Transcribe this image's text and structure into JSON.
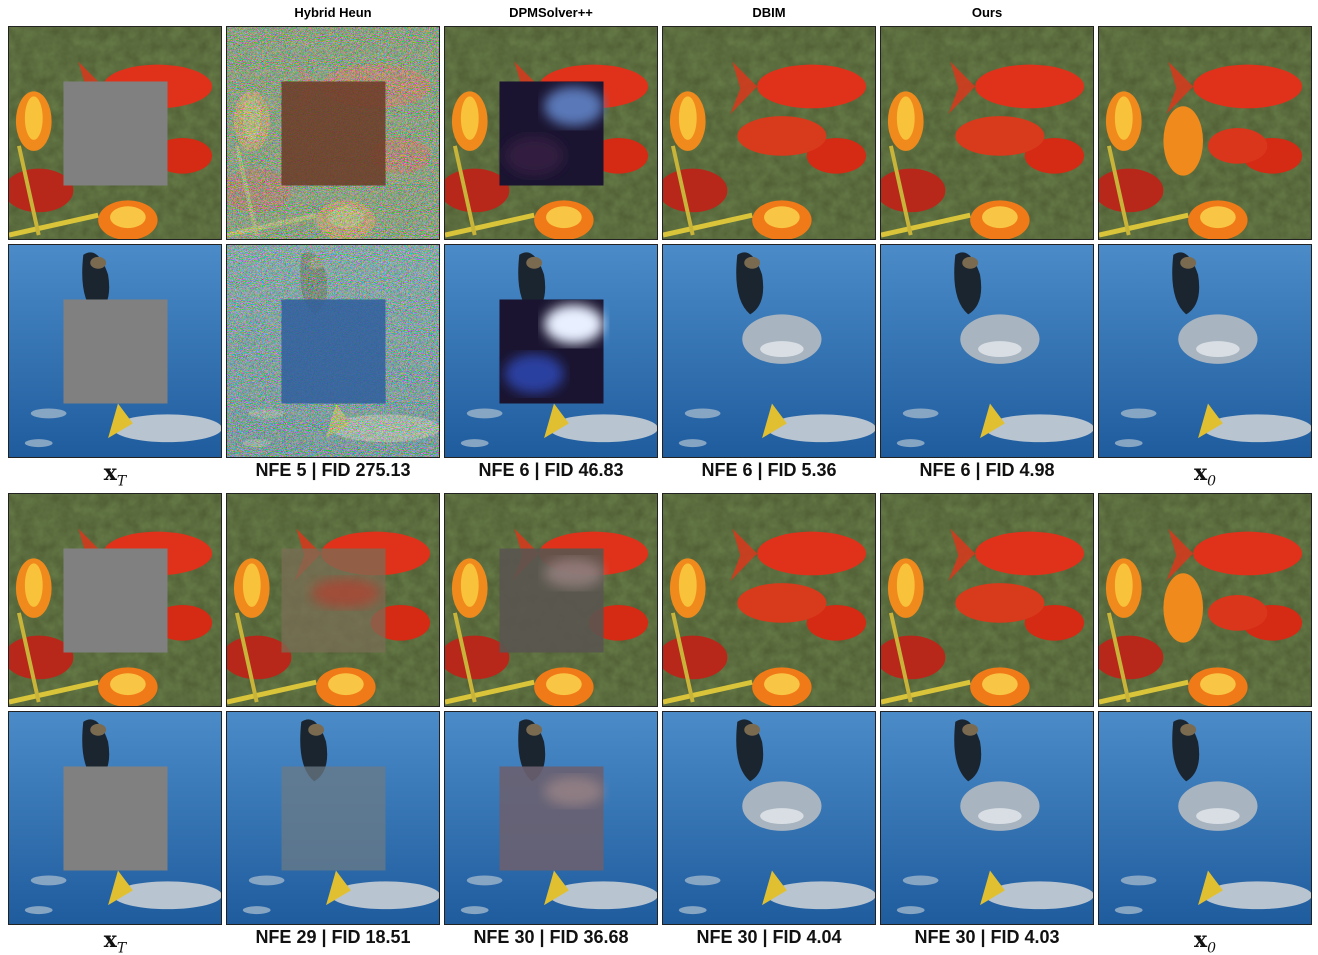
{
  "column_headers": [
    "Hybrid Heun",
    "DPMSolver++",
    "DBIM",
    "Ours"
  ],
  "blocks": [
    {
      "captions": [
        {
          "symbol": "x",
          "subscript": "T"
        },
        "NFE 5 | FID 275.13",
        "NFE 6 | FID 46.83",
        "NFE 6 | FID 5.36",
        "NFE 6 | FID 4.98",
        {
          "symbol": "x",
          "subscript": "0"
        }
      ]
    },
    {
      "captions": [
        {
          "symbol": "x",
          "subscript": "T"
        },
        "NFE 29 | FID 18.51",
        "NFE 30 | FID 36.68",
        "NFE 30 | FID 4.04",
        "NFE 30 | FID 4.03",
        {
          "symbol": "x",
          "subscript": "0"
        }
      ]
    }
  ]
}
